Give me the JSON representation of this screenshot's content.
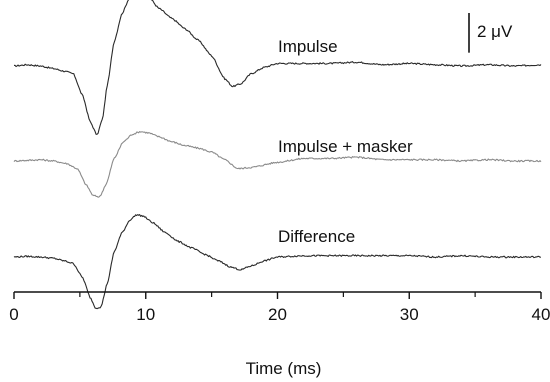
{
  "chart_data": {
    "type": "line",
    "title": "",
    "xlabel": "Time (ms)",
    "ylabel": "",
    "xlim": [
      0,
      40
    ],
    "xticks": [
      0,
      10,
      20,
      30,
      40
    ],
    "xtick_labels": [
      "0",
      "10",
      "20",
      "30",
      "40"
    ],
    "minor_xticks": [
      5,
      15,
      25,
      35
    ],
    "grid": false,
    "legend": "none",
    "scale_bar": {
      "value": 2,
      "label": "2 μV"
    },
    "series": [
      {
        "name": "Impulse",
        "color": "#2a2a2a",
        "x": [
          0,
          1,
          2,
          3,
          3.8,
          4.5,
          5.2,
          5.8,
          6.3,
          6.7,
          7.1,
          7.6,
          8.2,
          8.8,
          9.3,
          9.8,
          10.3,
          11,
          12,
          13,
          14,
          15,
          16,
          16.6,
          17.2,
          18,
          19,
          20,
          22,
          24,
          26,
          28,
          30,
          32,
          34,
          36,
          38,
          40
        ],
        "y": [
          0,
          0.1,
          0,
          -0.2,
          -0.4,
          -0.6,
          -2.3,
          -4.4,
          -5.4,
          -4.2,
          -1.4,
          1.9,
          4.1,
          5.4,
          6.0,
          5.8,
          5.3,
          4.5,
          3.7,
          2.9,
          2.0,
          0.8,
          -1.0,
          -1.6,
          -1.4,
          -0.6,
          -0.1,
          0.2,
          0.2,
          0.2,
          0.3,
          0.1,
          0.2,
          0.1,
          0,
          0.1,
          0,
          0.1
        ]
      },
      {
        "name": "Impulse + masker",
        "color": "#8a8a8a",
        "x": [
          0,
          1,
          2,
          3,
          4,
          4.8,
          5.5,
          6,
          6.5,
          7,
          7.6,
          8.3,
          9,
          9.6,
          10.2,
          11,
          12,
          13,
          14,
          15,
          16,
          17,
          18,
          20,
          22,
          24,
          26,
          28,
          30,
          32,
          34,
          36,
          38,
          40
        ],
        "y": [
          0,
          0.05,
          0.1,
          0,
          -0.2,
          -0.6,
          -1.9,
          -2.7,
          -2.8,
          -1.8,
          0.2,
          1.5,
          2.1,
          2.3,
          2.2,
          1.9,
          1.5,
          1.2,
          1.0,
          0.7,
          0.1,
          -0.6,
          -0.5,
          -0.1,
          0.2,
          0.2,
          0.3,
          0.1,
          0.1,
          0.1,
          0,
          0.1,
          0,
          0
        ]
      },
      {
        "name": "Difference",
        "color": "#2a2a2a",
        "x": [
          0,
          1,
          2,
          3,
          3.8,
          4.5,
          5.2,
          5.8,
          6.2,
          6.6,
          7.1,
          7.6,
          8.2,
          8.8,
          9.3,
          9.8,
          10.5,
          11.5,
          12.5,
          13.5,
          14.5,
          15.5,
          16.5,
          17.2,
          18,
          19,
          20,
          22,
          24,
          26,
          28,
          30,
          32,
          34,
          36,
          38,
          40
        ],
        "y": [
          0,
          0.05,
          0,
          -0.1,
          -0.3,
          -0.5,
          -1.6,
          -3.2,
          -4.0,
          -3.9,
          -2.0,
          0.4,
          1.9,
          2.9,
          3.3,
          3.2,
          2.7,
          1.9,
          1.2,
          0.7,
          0.2,
          -0.3,
          -0.8,
          -1.0,
          -0.7,
          -0.3,
          0,
          0.1,
          0.1,
          0.1,
          0.1,
          0.1,
          0,
          0.1,
          0,
          0,
          0
        ]
      }
    ]
  }
}
